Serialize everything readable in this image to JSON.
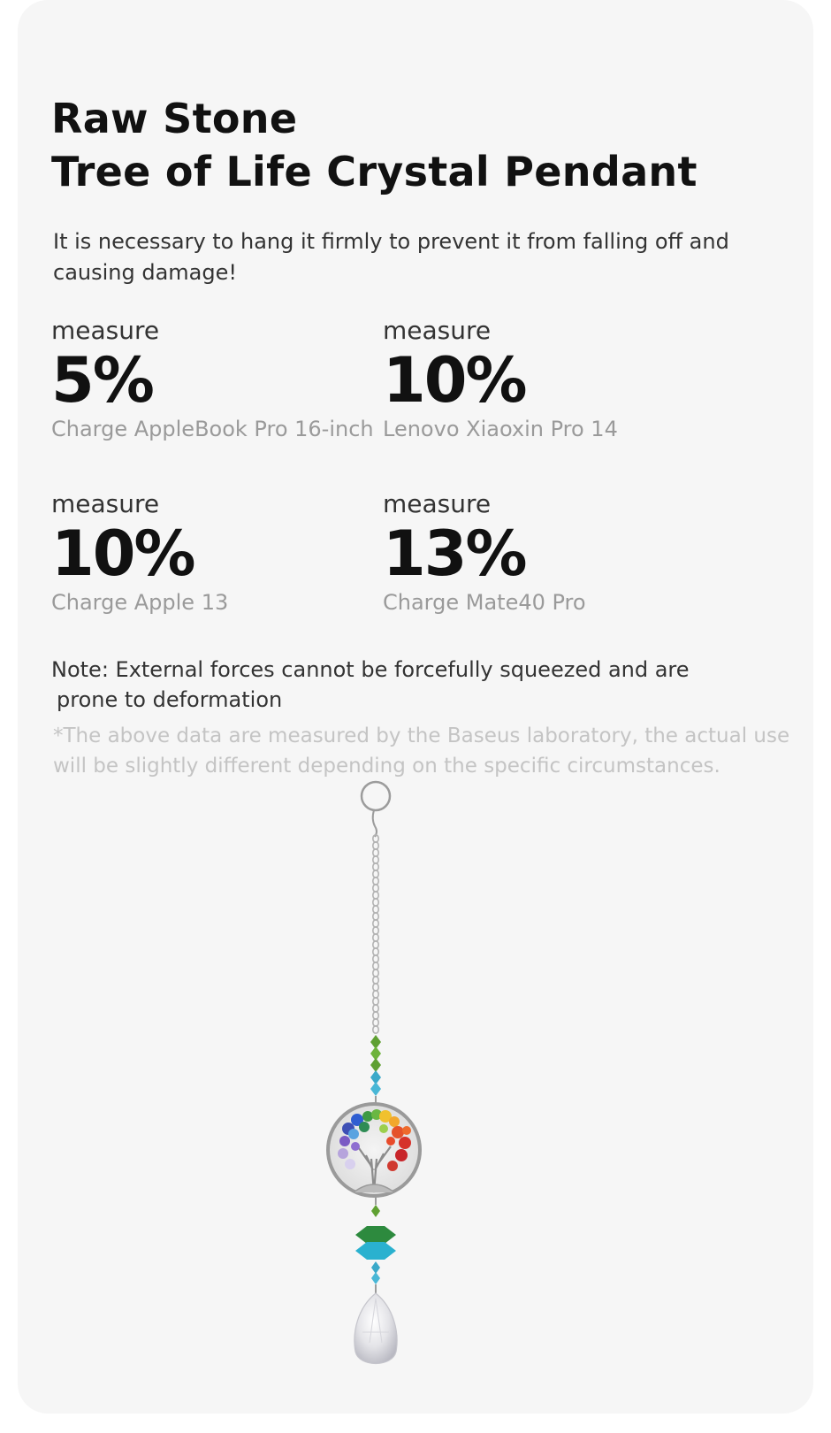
{
  "header": {
    "title_line1": "Raw Stone",
    "title_line2": "Tree of Life Crystal Pendant"
  },
  "warning_text": "It is necessary to hang it firmly to prevent it from falling off and causing damage!",
  "stats": [
    {
      "label": "measure",
      "value": "5%",
      "device": "Charge AppleBook Pro 16-inch"
    },
    {
      "label": "measure",
      "value": "10%",
      "device": "Lenovo Xiaoxin Pro 14"
    },
    {
      "label": "measure",
      "value": "10%",
      "device": "Charge Apple 13"
    },
    {
      "label": "measure",
      "value": "13%",
      "device": "Charge Mate40 Pro"
    }
  ],
  "note": {
    "line1": "Note: External forces cannot be forcefully squeezed and are",
    "line2": "prone to deformation"
  },
  "disclaimer": "*The above data are measured by the Baseus laboratory, the actual use will be slightly different depending on the specific circumstances.",
  "product_image": {
    "icon": "tree-of-life-crystal-pendant",
    "colors": {
      "chain": "#b5b5b5",
      "green_bead": "#5fa032",
      "blue_bead": "#3aa9c9",
      "ring": "#a9a9a9"
    }
  }
}
